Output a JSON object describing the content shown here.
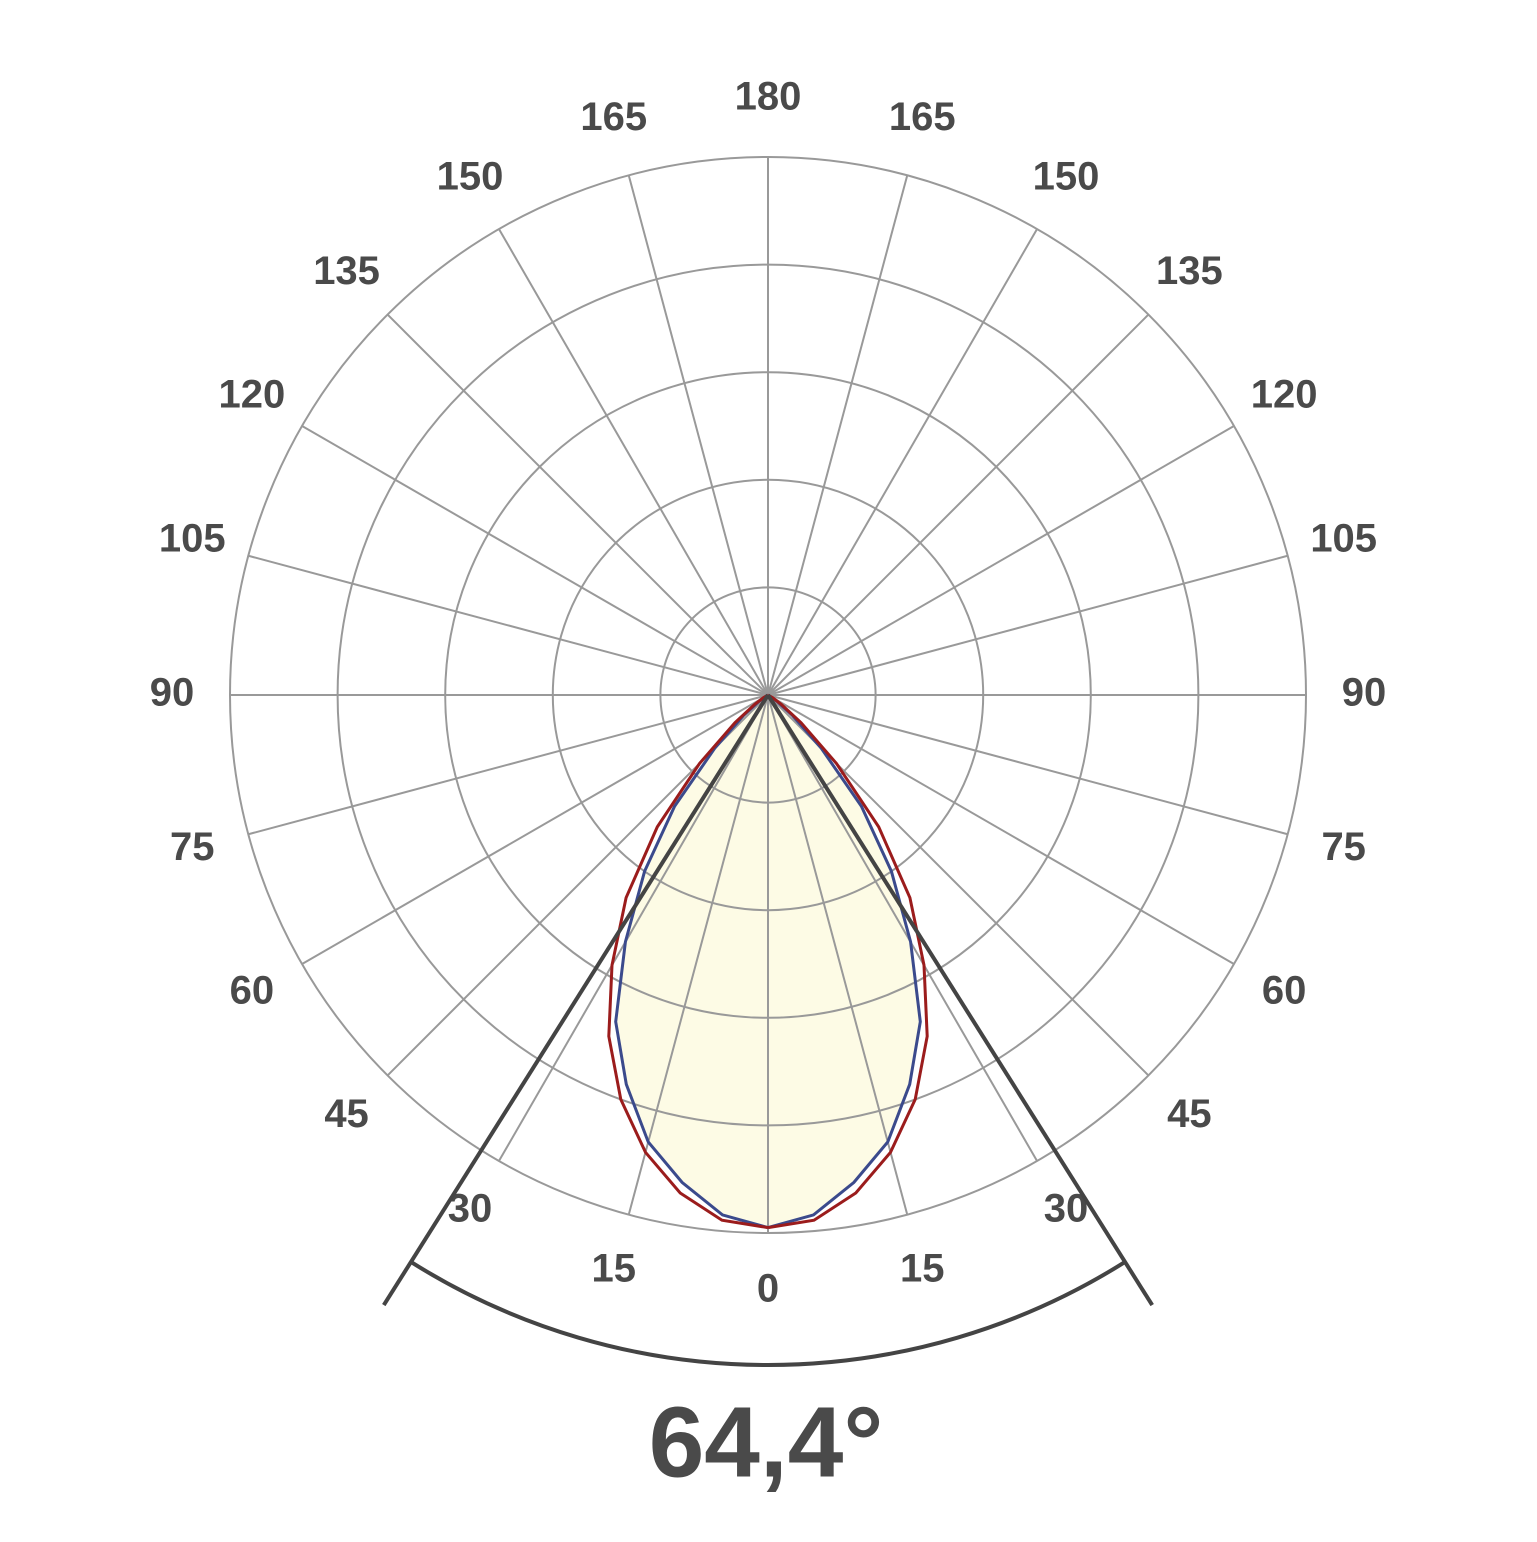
{
  "chart_data": {
    "type": "polar",
    "angles": [
      0,
      5,
      10,
      15,
      20,
      25,
      30,
      35,
      40,
      45,
      50,
      55,
      60,
      65,
      70,
      75,
      80,
      85,
      90,
      95,
      100,
      105,
      110,
      115,
      120,
      125,
      130,
      135,
      140,
      145,
      150,
      155,
      160,
      165,
      170,
      175,
      180
    ],
    "series": [
      {
        "color": "#3b4a8c",
        "fill": "#fdfbe5",
        "values": [
          99,
          97,
          92,
          86,
          77,
          67,
          53,
          40,
          27,
          14,
          6,
          2,
          0,
          0,
          0,
          0,
          0,
          0,
          0,
          0,
          0,
          0,
          0,
          0,
          0,
          0,
          0,
          0,
          0,
          0,
          0,
          0,
          0,
          0,
          0,
          0,
          0
        ]
      },
      {
        "color": "#9b1c1c",
        "values": [
          99,
          98,
          94,
          88,
          80,
          70,
          58,
          46,
          32,
          18,
          8,
          3,
          1,
          0,
          0,
          0,
          0,
          0,
          0,
          0,
          0,
          0,
          0,
          0,
          0,
          0,
          0,
          0,
          0,
          0,
          0,
          0,
          0,
          0,
          0,
          0,
          0
        ]
      }
    ],
    "rlim": [
      0,
      100
    ],
    "rgrid": [
      20,
      40,
      60,
      80,
      100
    ],
    "angle_ticks": [
      0,
      15,
      30,
      45,
      60,
      75,
      90,
      105,
      120,
      135,
      150,
      165,
      180
    ],
    "beam_angle": {
      "value": 64.4,
      "label": "64,4°"
    }
  }
}
